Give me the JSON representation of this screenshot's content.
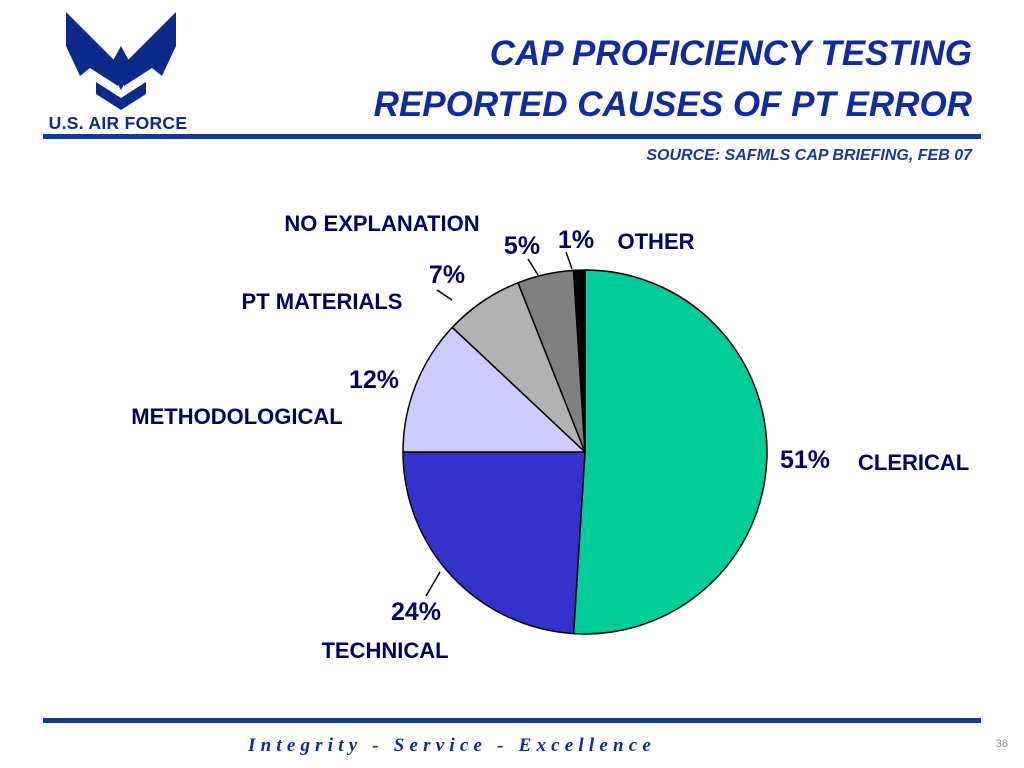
{
  "header": {
    "logo_text": "U.S. AIR FORCE",
    "title_line1": "CAP PROFICIENCY TESTING",
    "title_line2": "REPORTED CAUSES OF PT ERROR",
    "source": "SOURCE: SAFMLS CAP BRIEFING, FEB 07"
  },
  "footer": {
    "motto": "Integrity - Service - Excellence",
    "page_number": "38"
  },
  "colors": {
    "brand_blue": "#1737a0",
    "title_blue": "#0f2b9e",
    "label_color": "#000066"
  },
  "chart_data": {
    "type": "pie",
    "title": "",
    "start_angle_deg": 0,
    "direction": "clockwise",
    "slices": [
      {
        "label": "CLERICAL",
        "value": 51,
        "value_label": "51%",
        "color": "#00cc99"
      },
      {
        "label": "TECHNICAL",
        "value": 24,
        "value_label": "24%",
        "color": "#3333cc"
      },
      {
        "label": "METHODOLOGICAL",
        "value": 12,
        "value_label": "12%",
        "color": "#ccccff"
      },
      {
        "label": "PT MATERIALS",
        "value": 7,
        "value_label": "7%",
        "color": "#b2b2b2"
      },
      {
        "label": "NO EXPLANATION",
        "value": 5,
        "value_label": "5%",
        "color": "#808080"
      },
      {
        "label": "OTHER",
        "value": 1,
        "value_label": "1%",
        "color": "#000000"
      }
    ]
  }
}
